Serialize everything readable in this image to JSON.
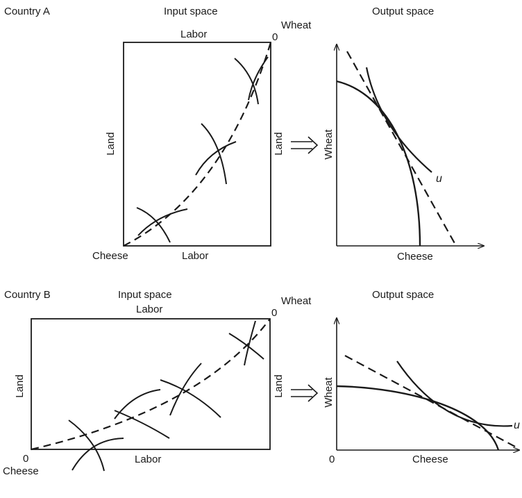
{
  "panels": {
    "a": {
      "country": "Country A",
      "input_title": "Input space",
      "output_title": "Output space",
      "box_top_label": "Labor",
      "box_bottom_label": "Labor",
      "box_left_label": "Land",
      "box_right_label": "Land",
      "origin_top": "0",
      "origin_top_good": "Wheat",
      "origin_bottom": "Cheese",
      "out_y_label": "Wheat",
      "out_x_label": "Cheese",
      "curve_label": "u"
    },
    "b": {
      "country": "Country B",
      "input_title": "Input space",
      "output_title": "Output space",
      "box_top_label": "Labor",
      "box_bottom_label": "Labor",
      "box_left_label": "Land",
      "box_right_label": "Land",
      "origin_top": "0",
      "origin_top_good": "Wheat",
      "origin_bottom_zero": "0",
      "origin_bottom": "Cheese",
      "out_origin": "0",
      "out_y_label": "Wheat",
      "out_x_label": "Cheese",
      "curve_label": "u"
    }
  },
  "colors": {
    "ink": "#1a1a1a"
  },
  "icons": {
    "implies": "double-right-arrow-icon"
  }
}
